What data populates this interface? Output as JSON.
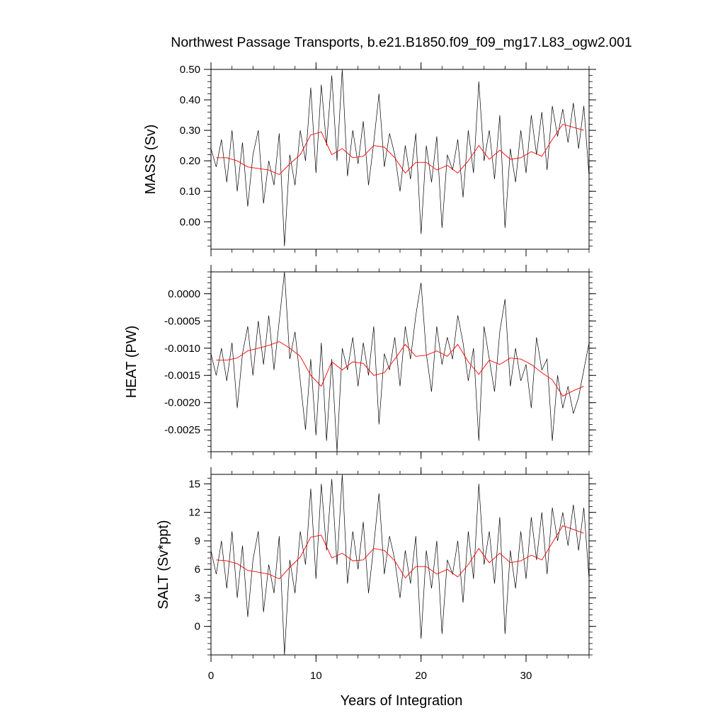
{
  "title": "Northwest Passage Transports, b.e21.B1850.f09_f09_mg17.L83_ogw2.001",
  "xlabel": "Years of Integration",
  "colors": {
    "monthly": "#000000",
    "annual": "#ff0000",
    "frame": "#000000"
  },
  "chart_data": [
    {
      "type": "line",
      "ylabel": "MASS (Sv)",
      "xlim": [
        0,
        36
      ],
      "ylim": [
        -0.09,
        0.5
      ],
      "xticks": [
        0,
        10,
        20,
        30
      ],
      "yticks": [
        0.5,
        0.4,
        0.3,
        0.2,
        0.1,
        0.0
      ],
      "ytick_labels": [
        "0.50",
        "0.40",
        "0.30",
        "0.20",
        "0.10",
        "0.00"
      ],
      "series": [
        {
          "style": "monthly",
          "x": [
            0.0,
            0.5,
            1.0,
            1.5,
            2.0,
            2.5,
            3.0,
            3.5,
            4.0,
            4.5,
            5.0,
            5.5,
            6.0,
            6.5,
            7.0,
            7.5,
            8.0,
            8.5,
            9.0,
            9.5,
            10.0,
            10.5,
            11.0,
            11.5,
            12.0,
            12.5,
            13.0,
            13.5,
            14.0,
            14.5,
            15.0,
            15.5,
            16.0,
            16.5,
            17.0,
            17.5,
            18.0,
            18.5,
            19.0,
            19.5,
            20.0,
            20.5,
            21.0,
            21.5,
            22.0,
            22.5,
            23.0,
            23.5,
            24.0,
            24.5,
            25.0,
            25.5,
            26.0,
            26.5,
            27.0,
            27.5,
            28.0,
            28.5,
            29.0,
            29.5,
            30.0,
            30.5,
            31.0,
            31.5,
            32.0,
            32.5,
            33.0,
            33.5,
            34.0,
            34.5,
            35.0,
            35.5,
            36.0
          ],
          "y": [
            0.24,
            0.18,
            0.27,
            0.13,
            0.3,
            0.1,
            0.26,
            0.05,
            0.22,
            0.3,
            0.06,
            0.2,
            0.12,
            0.29,
            -0.08,
            0.22,
            0.12,
            0.3,
            0.2,
            0.44,
            0.16,
            0.45,
            0.25,
            0.48,
            0.2,
            0.5,
            0.15,
            0.3,
            0.19,
            0.33,
            0.12,
            0.26,
            0.42,
            0.18,
            0.29,
            0.22,
            0.1,
            0.25,
            0.14,
            0.29,
            -0.04,
            0.25,
            0.13,
            0.28,
            -0.02,
            0.22,
            0.17,
            0.27,
            0.08,
            0.3,
            0.16,
            0.46,
            0.2,
            0.3,
            0.14,
            0.35,
            -0.02,
            0.24,
            0.13,
            0.3,
            0.16,
            0.35,
            0.22,
            0.36,
            0.17,
            0.38,
            0.28,
            0.37,
            0.26,
            0.39,
            0.24,
            0.38,
            0.15
          ]
        },
        {
          "style": "annual",
          "x": [
            0.5,
            1.5,
            2.5,
            3.5,
            4.5,
            5.5,
            6.5,
            7.5,
            8.5,
            9.5,
            10.5,
            11.5,
            12.5,
            13.5,
            14.5,
            15.5,
            16.5,
            17.5,
            18.5,
            19.5,
            20.5,
            21.5,
            22.5,
            23.5,
            24.5,
            25.5,
            26.5,
            27.5,
            28.5,
            29.5,
            30.5,
            31.5,
            32.5,
            33.5,
            34.5,
            35.5
          ],
          "y": [
            0.21,
            0.21,
            0.2,
            0.18,
            0.175,
            0.17,
            0.155,
            0.19,
            0.22,
            0.285,
            0.295,
            0.22,
            0.24,
            0.21,
            0.215,
            0.25,
            0.245,
            0.21,
            0.16,
            0.195,
            0.195,
            0.17,
            0.185,
            0.16,
            0.2,
            0.25,
            0.205,
            0.235,
            0.205,
            0.21,
            0.23,
            0.215,
            0.27,
            0.32,
            0.31,
            0.3
          ]
        }
      ]
    },
    {
      "type": "line",
      "ylabel": "HEAT (PW)",
      "xlim": [
        0,
        36
      ],
      "ylim": [
        -0.0029,
        0.0004
      ],
      "xticks": [
        0,
        10,
        20,
        30
      ],
      "yticks": [
        0.0,
        -0.0005,
        -0.001,
        -0.0015,
        -0.002,
        -0.0025
      ],
      "ytick_labels": [
        "0.0000",
        "-0.0005",
        "-0.0010",
        "-0.0015",
        "-0.0020",
        "-0.0025"
      ],
      "series": [
        {
          "style": "monthly",
          "x": [
            0.0,
            0.5,
            1.0,
            1.5,
            2.0,
            2.5,
            3.0,
            3.5,
            4.0,
            4.5,
            5.0,
            5.5,
            6.0,
            6.5,
            7.0,
            7.5,
            8.0,
            8.5,
            9.0,
            9.5,
            10.0,
            10.5,
            11.0,
            11.5,
            12.0,
            12.5,
            13.0,
            13.5,
            14.0,
            14.5,
            15.0,
            15.5,
            16.0,
            16.5,
            17.0,
            17.5,
            18.0,
            18.5,
            19.0,
            19.5,
            20.0,
            20.5,
            21.0,
            21.5,
            22.0,
            22.5,
            23.0,
            23.5,
            24.0,
            24.5,
            25.0,
            25.5,
            26.0,
            26.5,
            27.0,
            27.5,
            28.0,
            28.5,
            29.0,
            29.5,
            30.0,
            30.5,
            31.0,
            31.5,
            32.0,
            32.5,
            33.0,
            33.5,
            34.0,
            34.5,
            35.0,
            35.5,
            36.0
          ],
          "y": [
            -0.0011,
            -0.0015,
            -0.001,
            -0.0016,
            -0.0009,
            -0.0021,
            -0.0011,
            -0.0006,
            -0.0015,
            -0.0005,
            -0.0013,
            -0.0004,
            -0.0014,
            -0.0005,
            0.0004,
            -0.0012,
            -0.0007,
            -0.0016,
            -0.0025,
            -0.0012,
            -0.0026,
            -0.0009,
            -0.0027,
            -0.0012,
            -0.0029,
            -0.001,
            -0.0014,
            -0.0008,
            -0.0017,
            -0.0009,
            -0.0015,
            -0.0006,
            -0.0024,
            -0.0011,
            -0.0014,
            -0.0008,
            -0.0017,
            -0.0006,
            -0.0012,
            -0.0004,
            0.0002,
            -0.0011,
            -0.0018,
            -0.0006,
            -0.0013,
            -0.0008,
            -0.0012,
            -0.0004,
            -0.0009,
            -0.0016,
            -0.001,
            -0.0027,
            -0.0006,
            -0.0012,
            -0.0018,
            -0.0007,
            -0.0001,
            -0.0017,
            -0.001,
            -0.0016,
            -0.0013,
            -0.0021,
            -0.0008,
            -0.0014,
            -0.0012,
            -0.0027,
            -0.0015,
            -0.0021,
            -0.0017,
            -0.0022,
            -0.0019,
            -0.0014,
            -0.0009
          ]
        },
        {
          "style": "annual",
          "x": [
            0.5,
            1.5,
            2.5,
            3.5,
            4.5,
            5.5,
            6.5,
            7.5,
            8.5,
            9.5,
            10.5,
            11.5,
            12.5,
            13.5,
            14.5,
            15.5,
            16.5,
            17.5,
            18.5,
            19.5,
            20.5,
            21.5,
            22.5,
            23.5,
            24.5,
            25.5,
            26.5,
            27.5,
            28.5,
            29.5,
            30.5,
            31.5,
            32.5,
            33.5,
            34.5,
            35.5
          ],
          "y": [
            -0.00122,
            -0.00122,
            -0.00118,
            -0.00105,
            -0.001,
            -0.00095,
            -0.00088,
            -0.001,
            -0.00115,
            -0.0015,
            -0.0017,
            -0.00125,
            -0.0014,
            -0.00125,
            -0.00128,
            -0.0015,
            -0.00145,
            -0.0012,
            -0.00093,
            -0.00115,
            -0.00113,
            -0.00105,
            -0.00115,
            -0.00093,
            -0.00125,
            -0.00148,
            -0.00122,
            -0.0013,
            -0.00118,
            -0.0012,
            -0.0013,
            -0.00145,
            -0.00158,
            -0.00188,
            -0.00178,
            -0.0017
          ]
        }
      ]
    },
    {
      "type": "line",
      "ylabel": "SALT (Sv*ppt)",
      "xlim": [
        0,
        36
      ],
      "ylim": [
        -3,
        16
      ],
      "xticks": [
        0,
        10,
        20,
        30
      ],
      "yticks": [
        15,
        12,
        9,
        6,
        3,
        0
      ],
      "ytick_labels": [
        "15",
        "12",
        "9",
        "6",
        "3",
        "0"
      ],
      "series": [
        {
          "style": "monthly",
          "x": [
            0.0,
            0.5,
            1.0,
            1.5,
            2.0,
            2.5,
            3.0,
            3.5,
            4.0,
            4.5,
            5.0,
            5.5,
            6.0,
            6.5,
            7.0,
            7.5,
            8.0,
            8.5,
            9.0,
            9.5,
            10.0,
            10.5,
            11.0,
            11.5,
            12.0,
            12.5,
            13.0,
            13.5,
            14.0,
            14.5,
            15.0,
            15.5,
            16.0,
            16.5,
            17.0,
            17.5,
            18.0,
            18.5,
            19.0,
            19.5,
            20.0,
            20.5,
            21.0,
            21.5,
            22.0,
            22.5,
            23.0,
            23.5,
            24.0,
            24.5,
            25.0,
            25.5,
            26.0,
            26.5,
            27.0,
            27.5,
            28.0,
            28.5,
            29.0,
            29.5,
            30.0,
            30.5,
            31.0,
            31.5,
            32.0,
            32.5,
            33.0,
            33.5,
            34.0,
            34.5,
            35.0,
            35.5,
            36.0
          ],
          "y": [
            8.0,
            5.5,
            9.0,
            4.0,
            10.0,
            3.0,
            8.5,
            1.0,
            7.0,
            10.0,
            1.5,
            6.5,
            3.5,
            9.5,
            -3.0,
            7.0,
            3.5,
            10.0,
            6.5,
            14.5,
            5.0,
            15.0,
            8.0,
            15.5,
            6.5,
            16.0,
            4.5,
            10.0,
            6.0,
            11.0,
            3.5,
            8.5,
            14.0,
            5.5,
            9.5,
            7.0,
            3.0,
            8.0,
            4.5,
            9.5,
            -1.3,
            8.0,
            4.0,
            9.0,
            -0.8,
            7.0,
            5.5,
            9.0,
            2.5,
            10.0,
            5.0,
            15.0,
            6.5,
            10.0,
            4.5,
            11.5,
            -0.8,
            8.0,
            4.0,
            10.0,
            5.0,
            11.5,
            7.0,
            12.0,
            5.5,
            12.5,
            9.0,
            12.0,
            8.5,
            12.8,
            8.0,
            12.5,
            5.0
          ]
        },
        {
          "style": "annual",
          "x": [
            0.5,
            1.5,
            2.5,
            3.5,
            4.5,
            5.5,
            6.5,
            7.5,
            8.5,
            9.5,
            10.5,
            11.5,
            12.5,
            13.5,
            14.5,
            15.5,
            16.5,
            17.5,
            18.5,
            19.5,
            20.5,
            21.5,
            22.5,
            23.5,
            24.5,
            25.5,
            26.5,
            27.5,
            28.5,
            29.5,
            30.5,
            31.5,
            32.5,
            33.5,
            34.5,
            35.5
          ],
          "y": [
            7.0,
            6.9,
            6.6,
            5.9,
            5.7,
            5.5,
            5.0,
            6.2,
            7.3,
            9.4,
            9.6,
            7.2,
            7.7,
            6.9,
            7.0,
            8.2,
            8.0,
            6.9,
            5.1,
            6.3,
            6.3,
            5.5,
            6.0,
            5.2,
            6.5,
            8.2,
            6.7,
            7.7,
            6.7,
            6.9,
            7.5,
            7.0,
            8.8,
            10.6,
            10.2,
            9.8
          ]
        }
      ]
    }
  ]
}
